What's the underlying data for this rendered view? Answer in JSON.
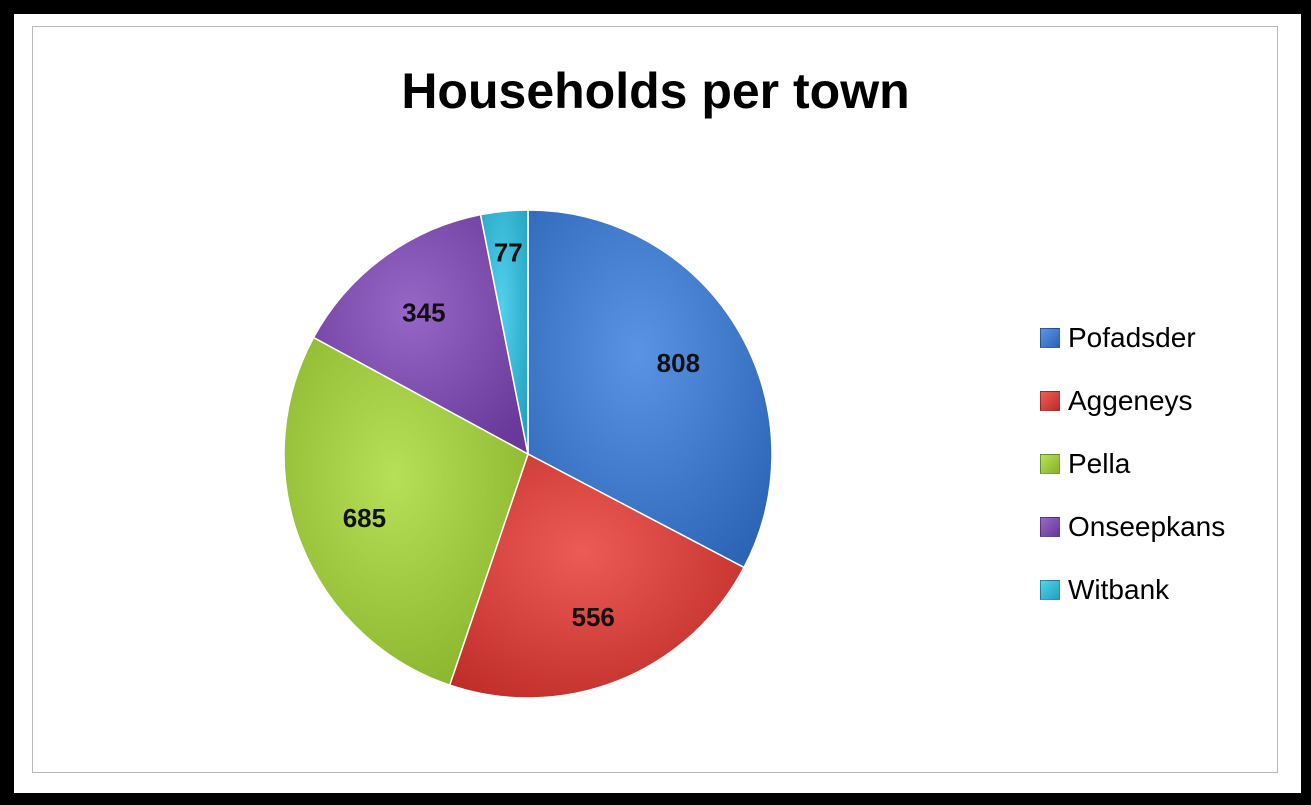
{
  "chart_data": {
    "type": "pie",
    "title": "Households per town",
    "categories": [
      "Pofadsder",
      "Aggeneys",
      "Pella",
      "Onseepkans",
      "Witbank"
    ],
    "values": [
      808,
      556,
      685,
      345,
      77
    ],
    "colors": [
      "#3f77c8",
      "#d13f3a",
      "#9ac43c",
      "#7b4bab",
      "#35b4d2"
    ],
    "data_labels": [
      "808",
      "556",
      "685",
      "345",
      "77"
    ],
    "start_angle_deg": 0,
    "direction": "clockwise",
    "legend_placement": "right",
    "grid": false
  }
}
